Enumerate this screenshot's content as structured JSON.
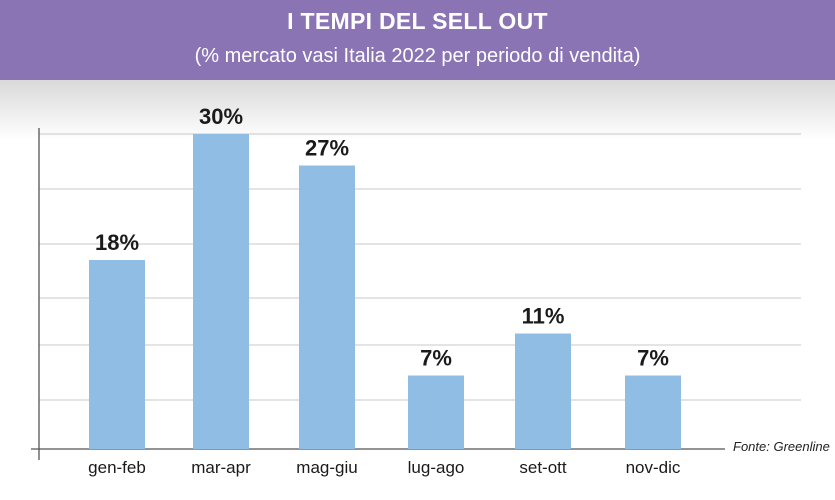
{
  "header": {
    "title": "I TEMPI DEL SELL OUT",
    "subtitle": "(% mercato vasi Italia 2022 per periodo di vendita)"
  },
  "source": "Fonte: Greenline",
  "colors": {
    "header_bg": "#8a74b4",
    "bar": "#90bde3",
    "grid": "#c8c8c8",
    "axis": "#555555",
    "label": "#1a1a1a"
  },
  "chart_data": {
    "type": "bar",
    "categories": [
      "gen-feb",
      "mar-apr",
      "mag-giu",
      "lug-ago",
      "set-ott",
      "nov-dic"
    ],
    "values": [
      18,
      30,
      27,
      7,
      11,
      7
    ],
    "data_labels": [
      "18%",
      "30%",
      "27%",
      "7%",
      "11%",
      "7%"
    ],
    "ylim": [
      0,
      30
    ],
    "grid": true,
    "title": "I TEMPI DEL SELL OUT",
    "xlabel": "",
    "ylabel": ""
  }
}
